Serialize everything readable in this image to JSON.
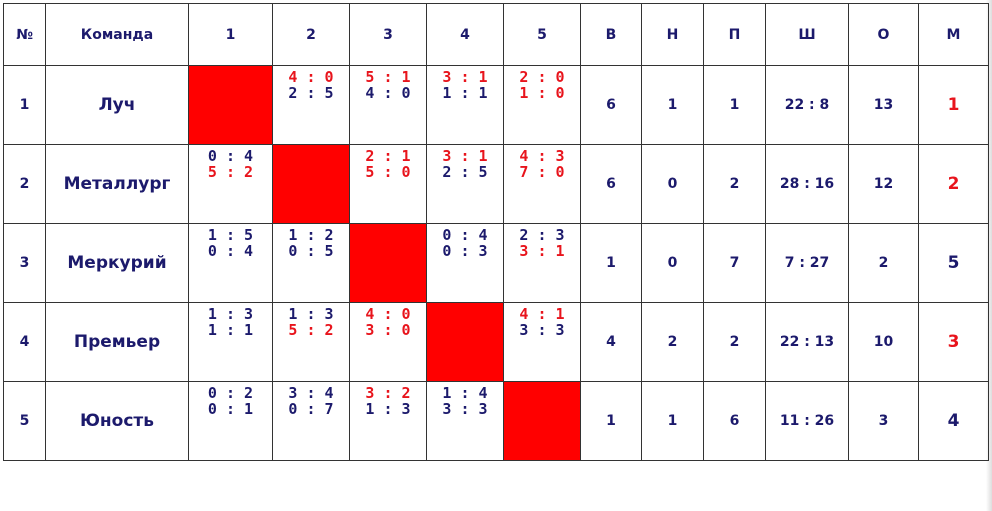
{
  "table": {
    "header": [
      "№",
      "Команда",
      "1",
      "2",
      "3",
      "4",
      "5",
      "В",
      "Н",
      "П",
      "Ш",
      "О",
      "М"
    ],
    "rows": [
      {
        "number": 1,
        "team": "Луч",
        "results": [
          null,
          {
            "scores": [
              "4 : 0",
              "2 : 5"
            ],
            "colors": [
              "#e8141c",
              "#1c1a6c"
            ]
          },
          {
            "scores": [
              "5 : 1",
              "4 : 0"
            ],
            "colors": [
              "#e8141c",
              "#1c1a6c"
            ]
          },
          {
            "scores": [
              "3 : 1",
              "1 : 1"
            ],
            "colors": [
              "#e8141c",
              "#1c1a6c"
            ]
          },
          {
            "scores": [
              "2 : 0",
              "1 : 0"
            ],
            "colors": [
              "#e8141c",
              "#e8141c"
            ]
          }
        ],
        "stats": [
          6,
          1,
          1,
          "22 : 8",
          13
        ],
        "place": 1,
        "place_color": "#e8141c"
      },
      {
        "number": 2,
        "team": "Металлург",
        "results": [
          {
            "scores": [
              "0 : 4",
              "5 : 2"
            ],
            "colors": [
              "#1c1a6c",
              "#e8141c"
            ]
          },
          null,
          {
            "scores": [
              "2 : 1",
              "5 : 0"
            ],
            "colors": [
              "#e8141c",
              "#e8141c"
            ]
          },
          {
            "scores": [
              "3 : 1",
              "2 : 5"
            ],
            "colors": [
              "#e8141c",
              "#1c1a6c"
            ]
          },
          {
            "scores": [
              "4 : 3",
              "7 : 0"
            ],
            "colors": [
              "#e8141c",
              "#e8141c"
            ]
          }
        ],
        "stats": [
          6,
          0,
          2,
          "28 : 16",
          12
        ],
        "place": 2,
        "place_color": "#e8141c"
      },
      {
        "number": 3,
        "team": "Меркурий",
        "results": [
          {
            "scores": [
              "1 : 5",
              "0 : 4"
            ],
            "colors": [
              "#1c1a6c",
              "#1c1a6c"
            ]
          },
          {
            "scores": [
              "1 : 2",
              "0 : 5"
            ],
            "colors": [
              "#1c1a6c",
              "#1c1a6c"
            ]
          },
          null,
          {
            "scores": [
              "0 : 4",
              "0 : 3"
            ],
            "colors": [
              "#1c1a6c",
              "#1c1a6c"
            ]
          },
          {
            "scores": [
              "2 : 3",
              "3 : 1"
            ],
            "colors": [
              "#1c1a6c",
              "#e8141c"
            ]
          }
        ],
        "stats": [
          1,
          0,
          7,
          "7 : 27",
          2
        ],
        "place": 5,
        "place_color": "#1c1a6c"
      },
      {
        "number": 4,
        "team": "Премьер",
        "results": [
          {
            "scores": [
              "1 : 3",
              "1 : 1"
            ],
            "colors": [
              "#1c1a6c",
              "#1c1a6c"
            ]
          },
          {
            "scores": [
              "1 : 3",
              "5 : 2"
            ],
            "colors": [
              "#1c1a6c",
              "#e8141c"
            ]
          },
          {
            "scores": [
              "4 : 0",
              "3 : 0"
            ],
            "colors": [
              "#e8141c",
              "#e8141c"
            ]
          },
          null,
          {
            "scores": [
              "4 : 1",
              "3 : 3"
            ],
            "colors": [
              "#e8141c",
              "#1c1a6c"
            ]
          }
        ],
        "stats": [
          4,
          2,
          2,
          "22 : 13",
          10
        ],
        "place": 3,
        "place_color": "#e8141c"
      },
      {
        "number": 5,
        "team": "Юность",
        "results": [
          {
            "scores": [
              "0 : 2",
              "0 : 1"
            ],
            "colors": [
              "#1c1a6c",
              "#1c1a6c"
            ]
          },
          {
            "scores": [
              "3 : 4",
              "0 : 7"
            ],
            "colors": [
              "#1c1a6c",
              "#1c1a6c"
            ]
          },
          {
            "scores": [
              "3 : 2",
              "1 : 3"
            ],
            "colors": [
              "#e8141c",
              "#1c1a6c"
            ]
          },
          {
            "scores": [
              "1 : 4",
              "3 : 3"
            ],
            "colors": [
              "#1c1a6c",
              "#1c1a6c"
            ]
          },
          null
        ],
        "stats": [
          1,
          1,
          6,
          "11 : 26",
          3
        ],
        "place": 4,
        "place_color": "#1c1a6c"
      }
    ]
  }
}
